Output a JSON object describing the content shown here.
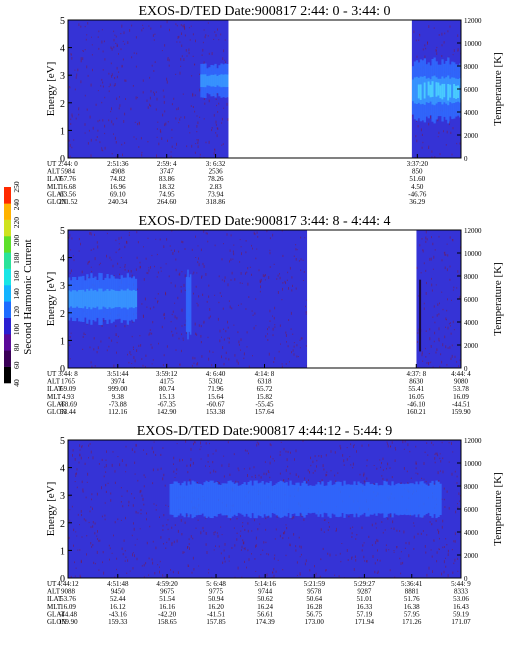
{
  "colors": {
    "background": "#3533d6",
    "band": "#2f6cff",
    "band_core": "#3ba6ff",
    "band_hot": "#55f2ff",
    "speckle": "#7a1a48",
    "gap": "#ffffff"
  },
  "colorbar": {
    "label": "Second Harmonic Current",
    "ticks": [
      "40",
      "60",
      "80",
      "100",
      "120",
      "140",
      "160",
      "180",
      "200",
      "220",
      "240",
      "250"
    ],
    "colors": [
      "#000000",
      "#3a0056",
      "#5a0a9a",
      "#2a1fd2",
      "#1e6cff",
      "#13b4ff",
      "#19e6e6",
      "#2ae39a",
      "#5ee02a",
      "#cfe31f",
      "#ffb300",
      "#ff2a00"
    ]
  },
  "chart_data": [
    {
      "type": "heatmap",
      "title": "EXOS-D/TED   Date:900817  2:44: 0 - 3:44: 0",
      "ylabel": "Energy [eV]",
      "y2label": "Temperature [K]",
      "ylim": [
        0,
        5
      ],
      "y2lim": [
        0,
        12000
      ],
      "y_ticks": [
        "0",
        "1",
        "2",
        "3",
        "4",
        "5"
      ],
      "y2_ticks": [
        "0",
        "2000",
        "4000",
        "6000",
        "8000",
        "10000",
        "12000"
      ],
      "x_range_min": [
        0,
        60
      ],
      "data_gaps_min": [
        [
          24.5,
          52.5
        ]
      ],
      "bands": [
        {
          "t0": 20.2,
          "t1": 24.5,
          "e_lo": 2.2,
          "e_hi": 3.4,
          "intensity": 0.75
        },
        {
          "t0": 52.5,
          "t1": 60,
          "e_lo": 1.3,
          "e_hi": 3.6,
          "intensity": 0.9
        }
      ],
      "x_tick_min": [
        0,
        7.6,
        15.07,
        22.53,
        53.33
      ],
      "rows": [
        {
          "label": "UT",
          "values": [
            "2:44: 0",
            "2:51:36",
            "2:59: 4",
            "3: 6:32",
            "3:37:20"
          ]
        },
        {
          "label": "ALT",
          "values": [
            "5984",
            "4908",
            "3747",
            "2536",
            "850"
          ]
        },
        {
          "label": "ILAT",
          "values": [
            "67.76",
            "74.82",
            "83.86",
            "78.26",
            "51.60"
          ]
        },
        {
          "label": "MLT",
          "values": [
            "16.68",
            "16.96",
            "18.32",
            "2.83",
            "4.50"
          ]
        },
        {
          "label": "GLAT",
          "values": [
            "63.56",
            "69.10",
            "74.95",
            "73.94",
            "-46.76"
          ]
        },
        {
          "label": "GLON",
          "values": [
            "231.52",
            "240.34",
            "264.60",
            "318.86",
            "36.29"
          ]
        }
      ]
    },
    {
      "type": "heatmap",
      "title": "EXOS-D/TED   Date:900817  3:44: 8 - 4:44: 4",
      "ylabel": "Energy [eV]",
      "y2label": "Temperature [K]",
      "ylim": [
        0,
        5
      ],
      "y2lim": [
        0,
        12000
      ],
      "y_ticks": [
        "0",
        "1",
        "2",
        "3",
        "4",
        "5"
      ],
      "y2_ticks": [
        "0",
        "2000",
        "4000",
        "6000",
        "8000",
        "10000",
        "12000"
      ],
      "x_range_min": [
        0,
        60
      ],
      "data_gaps_min": [
        [
          36.5,
          53.2
        ]
      ],
      "bands": [
        {
          "t0": 0,
          "t1": 10.5,
          "e_lo": 1.6,
          "e_hi": 3.4,
          "intensity": 0.8
        },
        {
          "t0": 18.0,
          "t1": 18.8,
          "e_lo": 1.0,
          "e_hi": 3.6,
          "intensity": 0.4
        }
      ],
      "x_tick_min": [
        0,
        7.6,
        15.07,
        22.53,
        30.0,
        53.17,
        60
      ],
      "rows": [
        {
          "label": "UT",
          "values": [
            "3:44: 8",
            "3:51:44",
            "3:59:12",
            "4: 6:40",
            "4:14: 8",
            "4:37: 8",
            "4:44: 4"
          ]
        },
        {
          "label": "ALT",
          "values": [
            "1765",
            "3974",
            "4175",
            "5302",
            "6318",
            "8630",
            "9080"
          ]
        },
        {
          "label": "ILAT",
          "values": [
            "69.09",
            "999.00",
            "80.74",
            "71.96",
            "65.72",
            "55.41",
            "53.78"
          ]
        },
        {
          "label": "MLT",
          "values": [
            "4.93",
            "9.38",
            "15.13",
            "15.64",
            "15.82",
            "16.05",
            "16.09"
          ]
        },
        {
          "label": "GLAT",
          "values": [
            "-68.69",
            "-73.88",
            "-67.35",
            "-60.67",
            "-55.45",
            "-46.10",
            "-44.51"
          ]
        },
        {
          "label": "GLON",
          "values": [
            "53.44",
            "112.16",
            "142.90",
            "153.38",
            "157.64",
            "160.21",
            "159.90"
          ]
        }
      ]
    },
    {
      "type": "heatmap",
      "title": "EXOS-D/TED   Date:900817  4:44:12 - 5:44: 9",
      "ylabel": "Energy [eV]",
      "y2label": "Temperature [K]",
      "ylim": [
        0,
        5
      ],
      "y2lim": [
        0,
        12000
      ],
      "y_ticks": [
        "0",
        "1",
        "2",
        "3",
        "4",
        "5"
      ],
      "y2_ticks": [
        "0",
        "2000",
        "4000",
        "6000",
        "8000",
        "10000",
        "12000"
      ],
      "x_range_min": [
        0,
        60
      ],
      "data_gaps_min": [],
      "bands": [
        {
          "t0": 15.5,
          "t1": 57.0,
          "e_lo": 2.2,
          "e_hi": 3.5,
          "intensity": 0.55
        }
      ],
      "x_tick_min": [
        0,
        7.6,
        15.13,
        22.6,
        30.1,
        37.6,
        45.25,
        52.48,
        60
      ],
      "rows": [
        {
          "label": "UT",
          "values": [
            "4:44:12",
            "4:51:48",
            "4:59:20",
            "5: 6:48",
            "5:14:16",
            "5:21:59",
            "5:29:27",
            "5:36:41",
            "5:44: 9"
          ]
        },
        {
          "label": "ALT",
          "values": [
            "9088",
            "9450",
            "9675",
            "9775",
            "9744",
            "9578",
            "9287",
            "8881",
            "8333"
          ]
        },
        {
          "label": "ILAT",
          "values": [
            "53.76",
            "52.44",
            "51.54",
            "50.94",
            "50.62",
            "50.64",
            "51.01",
            "51.76",
            "53.06"
          ]
        },
        {
          "label": "MLT",
          "values": [
            "16.09",
            "16.12",
            "16.16",
            "16.20",
            "16.24",
            "16.28",
            "16.33",
            "16.38",
            "16.43"
          ]
        },
        {
          "label": "GLAT",
          "values": [
            "-44.48",
            "-43.16",
            "-42.20",
            "-41.51",
            "56.61",
            "56.75",
            "57.19",
            "57.95",
            "59.19"
          ]
        },
        {
          "label": "GLON",
          "values": [
            "159.90",
            "159.33",
            "158.65",
            "157.85",
            "174.39",
            "173.00",
            "171.94",
            "171.26",
            "171.07"
          ]
        }
      ]
    }
  ]
}
